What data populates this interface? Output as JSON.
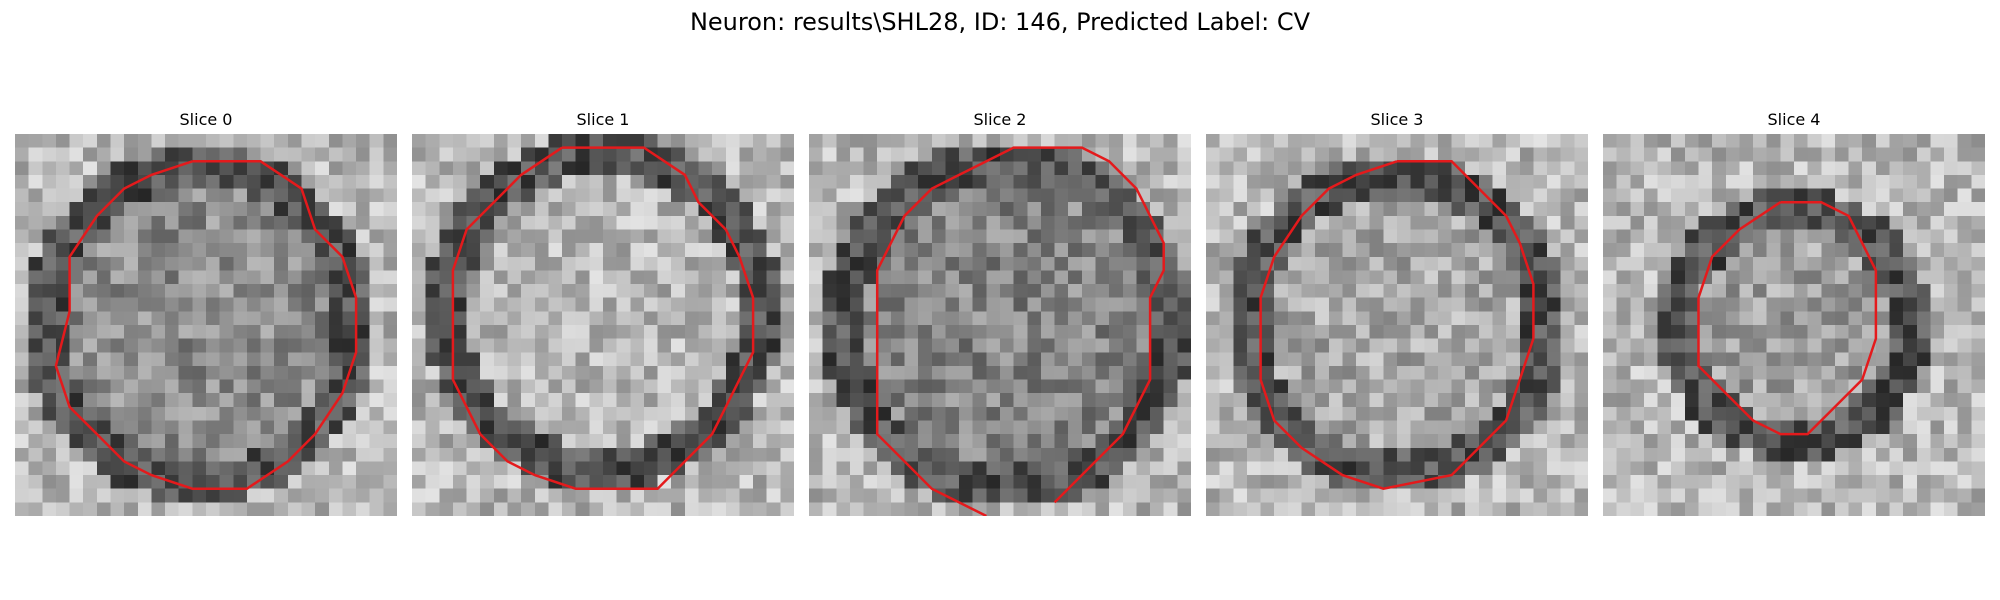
{
  "figure_title": "Neuron: results\\SHL28, ID: 146, Predicted Label: CV",
  "colors": {
    "contour": "#e41a1c",
    "background": "#ffffff"
  },
  "panels": [
    {
      "title": "Slice 0"
    },
    {
      "title": "Slice 1"
    },
    {
      "title": "Slice 2"
    },
    {
      "title": "Slice 3"
    },
    {
      "title": "Slice 4"
    }
  ]
}
